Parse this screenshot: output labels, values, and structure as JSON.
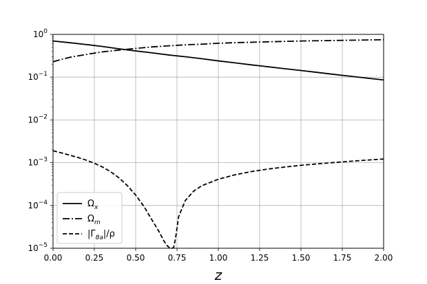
{
  "chart_data": {
    "type": "line",
    "title": "",
    "xlabel": "z",
    "ylabel": "",
    "yscale": "log",
    "xlim": [
      0,
      2
    ],
    "ylim": [
      1e-05,
      1
    ],
    "grid": true,
    "legend_position": "lower-left",
    "x_ticks": [
      {
        "value": 0.0,
        "label": "0.00"
      },
      {
        "value": 0.25,
        "label": "0.25"
      },
      {
        "value": 0.5,
        "label": "0.50"
      },
      {
        "value": 0.75,
        "label": "0.75"
      },
      {
        "value": 1.0,
        "label": "1.00"
      },
      {
        "value": 1.25,
        "label": "1.25"
      },
      {
        "value": 1.5,
        "label": "1.50"
      },
      {
        "value": 1.75,
        "label": "1.75"
      },
      {
        "value": 2.0,
        "label": "2.00"
      }
    ],
    "y_ticks": [
      {
        "value": 1,
        "base": "10",
        "exp": "0"
      },
      {
        "value": 0.1,
        "base": "10",
        "exp": "−1"
      },
      {
        "value": 0.01,
        "base": "10",
        "exp": "−2"
      },
      {
        "value": 0.001,
        "base": "10",
        "exp": "−3"
      },
      {
        "value": 0.0001,
        "base": "10",
        "exp": "−4"
      },
      {
        "value": 1e-05,
        "base": "10",
        "exp": "−5"
      }
    ],
    "series": [
      {
        "name": "Ω_x",
        "label_main": "Ω",
        "label_sub": "x",
        "style": "solid",
        "color": "#000000",
        "points": [
          [
            0.0,
            0.7
          ],
          [
            0.1,
            0.64
          ],
          [
            0.2,
            0.58
          ],
          [
            0.3,
            0.52
          ],
          [
            0.4,
            0.46
          ],
          [
            0.5,
            0.41
          ],
          [
            0.6,
            0.37
          ],
          [
            0.7,
            0.33
          ],
          [
            0.8,
            0.3
          ],
          [
            0.9,
            0.27
          ],
          [
            1.0,
            0.24
          ],
          [
            1.1,
            0.216
          ],
          [
            1.2,
            0.194
          ],
          [
            1.3,
            0.175
          ],
          [
            1.4,
            0.158
          ],
          [
            1.5,
            0.143
          ],
          [
            1.6,
            0.129
          ],
          [
            1.7,
            0.116
          ],
          [
            1.8,
            0.105
          ],
          [
            1.9,
            0.095
          ],
          [
            2.0,
            0.086
          ]
        ]
      },
      {
        "name": "Ω_m",
        "label_main": "Ω",
        "label_sub": "m",
        "style": "dashdot",
        "color": "#000000",
        "points": [
          [
            0.0,
            0.23
          ],
          [
            0.1,
            0.29
          ],
          [
            0.2,
            0.34
          ],
          [
            0.3,
            0.39
          ],
          [
            0.4,
            0.43
          ],
          [
            0.5,
            0.47
          ],
          [
            0.6,
            0.51
          ],
          [
            0.7,
            0.54
          ],
          [
            0.8,
            0.57
          ],
          [
            0.9,
            0.59
          ],
          [
            1.0,
            0.62
          ],
          [
            1.1,
            0.64
          ],
          [
            1.2,
            0.655
          ],
          [
            1.3,
            0.67
          ],
          [
            1.4,
            0.685
          ],
          [
            1.5,
            0.7
          ],
          [
            1.6,
            0.71
          ],
          [
            1.7,
            0.72
          ],
          [
            1.8,
            0.73
          ],
          [
            1.9,
            0.74
          ],
          [
            2.0,
            0.75
          ]
        ]
      },
      {
        "name": "|Γ_8a|/ρ",
        "label_pre": "|Γ",
        "label_sub": "8a",
        "label_post": "|/ρ",
        "style": "dashed",
        "color": "#000000",
        "points": [
          [
            0.0,
            0.0019
          ],
          [
            0.05,
            0.0017
          ],
          [
            0.1,
            0.0015
          ],
          [
            0.15,
            0.00133
          ],
          [
            0.2,
            0.00115
          ],
          [
            0.25,
            0.00097
          ],
          [
            0.3,
            0.00079
          ],
          [
            0.35,
            0.00061
          ],
          [
            0.4,
            0.00044
          ],
          [
            0.45,
            0.00029
          ],
          [
            0.5,
            0.000175
          ],
          [
            0.55,
            9.5e-05
          ],
          [
            0.6,
            4.5e-05
          ],
          [
            0.64,
            2.5e-05
          ],
          [
            0.67,
            1.5e-05
          ],
          [
            0.69,
            1.15e-05
          ],
          [
            0.705,
            1.02e-05
          ],
          [
            0.715,
            1e-05
          ],
          [
            0.72,
            1e-05
          ],
          [
            0.73,
            1.05e-05
          ],
          [
            0.74,
            1.6e-05
          ],
          [
            0.76,
            5.5e-05
          ],
          [
            0.8,
            0.00013
          ],
          [
            0.85,
            0.000215
          ],
          [
            0.9,
            0.00029
          ],
          [
            1.0,
            0.00041
          ],
          [
            1.1,
            0.00052
          ],
          [
            1.2,
            0.00062
          ],
          [
            1.3,
            0.00071
          ],
          [
            1.4,
            0.00079
          ],
          [
            1.5,
            0.00087
          ],
          [
            1.6,
            0.00094
          ],
          [
            1.7,
            0.00101
          ],
          [
            1.8,
            0.00108
          ],
          [
            1.9,
            0.00115
          ],
          [
            2.0,
            0.00122
          ]
        ]
      }
    ]
  }
}
